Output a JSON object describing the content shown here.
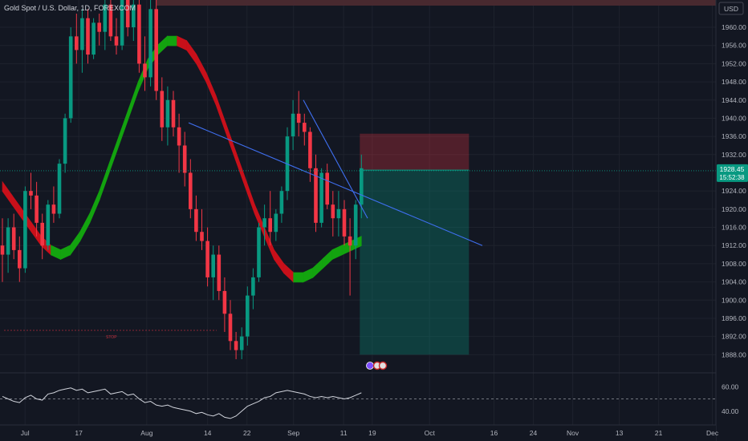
{
  "symbol_title": "Gold Spot / U.S. Dollar, 1D, FOREXCOM",
  "currency_button": "USD",
  "last_price": "1928.45",
  "countdown": "15:52:38",
  "stop_marker": "STOP",
  "colors": {
    "background": "#131722",
    "bull": "#089981",
    "bear": "#f23645",
    "trend_line": "#3f6ff0",
    "price_badge": "#089981",
    "band_up": "#13a30f",
    "band_down": "#c8101a"
  },
  "price_axis": {
    "labels": [
      "1960.00",
      "1956.00",
      "1952.00",
      "1948.00",
      "1944.00",
      "1940.00",
      "1936.00",
      "1932.00",
      "1924.00",
      "1920.00",
      "1916.00",
      "1912.00",
      "1908.00",
      "1904.00",
      "1900.00",
      "1896.00",
      "1892.00",
      "1888.00"
    ]
  },
  "oscillator_axis": {
    "labels": [
      "60.00",
      "40.00"
    ]
  },
  "time_axis": {
    "labels": [
      "Jul",
      "17",
      "Aug",
      "14",
      "22",
      "Sep",
      "11",
      "19",
      "Oct",
      "16",
      "24",
      "Nov",
      "13",
      "21",
      "Dec"
    ]
  },
  "chart_data": {
    "type": "candlestick",
    "title": "Gold Spot / U.S. Dollar, 1D, FOREXCOM",
    "ylabel": "USD",
    "ylim": [
      1884,
      1966
    ],
    "oscillator_ylim": [
      30,
      70
    ],
    "oscillator_levels": [
      60,
      40
    ],
    "last_price": 1928.45,
    "position": {
      "side": "short",
      "entry": 1928.6,
      "stop": 1936.6,
      "target": 1888.0
    },
    "candles": [
      [
        1912,
        1918,
        1904,
        1910
      ],
      [
        1910,
        1918,
        1906,
        1916
      ],
      [
        1916,
        1919,
        1909,
        1911
      ],
      [
        1911,
        1914,
        1904,
        1907
      ],
      [
        1907,
        1925,
        1906,
        1924
      ],
      [
        1924,
        1928,
        1920,
        1923
      ],
      [
        1923,
        1926,
        1914,
        1917
      ],
      [
        1917,
        1919,
        1909,
        1912
      ],
      [
        1912,
        1922,
        1911,
        1921
      ],
      [
        1921,
        1925,
        1917,
        1919
      ],
      [
        1919,
        1931,
        1918,
        1930
      ],
      [
        1930,
        1941,
        1928,
        1940
      ],
      [
        1940,
        1960,
        1939,
        1958
      ],
      [
        1958,
        1963,
        1952,
        1955
      ],
      [
        1955,
        1964,
        1950,
        1962
      ],
      [
        1962,
        1964,
        1952,
        1954
      ],
      [
        1954,
        1962,
        1953,
        1961
      ],
      [
        1961,
        1963,
        1956,
        1959
      ],
      [
        1959,
        1966,
        1955,
        1965
      ],
      [
        1965,
        1968,
        1957,
        1958
      ],
      [
        1958,
        1962,
        1954,
        1956
      ],
      [
        1956,
        1968,
        1955,
        1967
      ],
      [
        1967,
        1969,
        1958,
        1960
      ],
      [
        1960,
        1966,
        1957,
        1965
      ],
      [
        1965,
        1968,
        1950,
        1952
      ],
      [
        1952,
        1958,
        1946,
        1949
      ],
      [
        1949,
        1966,
        1947,
        1964
      ],
      [
        1964,
        1967,
        1944,
        1946
      ],
      [
        1946,
        1949,
        1935,
        1938
      ],
      [
        1938,
        1947,
        1934,
        1944
      ],
      [
        1944,
        1946,
        1936,
        1938
      ],
      [
        1938,
        1941,
        1928,
        1934
      ],
      [
        1934,
        1937,
        1925,
        1928
      ],
      [
        1928,
        1931,
        1918,
        1920
      ],
      [
        1920,
        1923,
        1913,
        1915
      ],
      [
        1915,
        1920,
        1911,
        1913
      ],
      [
        1913,
        1916,
        1903,
        1905
      ],
      [
        1905,
        1912,
        1900,
        1910
      ],
      [
        1910,
        1912,
        1900,
        1902
      ],
      [
        1902,
        1905,
        1893,
        1897
      ],
      [
        1897,
        1900,
        1889,
        1891
      ],
      [
        1891,
        1893,
        1887,
        1889
      ],
      [
        1889,
        1894,
        1887,
        1892
      ],
      [
        1892,
        1903,
        1890,
        1901
      ],
      [
        1901,
        1907,
        1898,
        1905
      ],
      [
        1905,
        1917,
        1904,
        1916
      ],
      [
        1916,
        1921,
        1912,
        1918
      ],
      [
        1918,
        1924,
        1912,
        1915
      ],
      [
        1915,
        1920,
        1913,
        1919
      ],
      [
        1919,
        1925,
        1917,
        1924
      ],
      [
        1924,
        1938,
        1922,
        1936
      ],
      [
        1936,
        1944,
        1933,
        1941
      ],
      [
        1941,
        1946,
        1936,
        1939
      ],
      [
        1939,
        1941,
        1934,
        1937
      ],
      [
        1937,
        1938,
        1926,
        1929
      ],
      [
        1929,
        1932,
        1915,
        1917
      ],
      [
        1917,
        1929,
        1916,
        1928
      ],
      [
        1928,
        1930,
        1920,
        1921
      ],
      [
        1921,
        1924,
        1914,
        1918
      ],
      [
        1918,
        1924,
        1914,
        1920
      ],
      [
        1920,
        1922,
        1912,
        1914
      ],
      [
        1914,
        1918,
        1901,
        1912
      ],
      [
        1912,
        1922,
        1909,
        1921
      ],
      [
        1921,
        1932,
        1918,
        1929
      ]
    ],
    "band": [
      1925,
      1922,
      1919,
      1916,
      1913,
      1911,
      1910,
      1911,
      1914,
      1918,
      1923,
      1929,
      1935,
      1941,
      1947,
      1952,
      1955,
      1957,
      1957,
      1956,
      1953,
      1949,
      1944,
      1938,
      1932,
      1926,
      1920,
      1915,
      1910,
      1907,
      1905,
      1905,
      1906,
      1908,
      1910,
      1911,
      1912,
      1913
    ],
    "band_direction": [
      "down",
      "down",
      "down",
      "down",
      "down",
      "up",
      "up",
      "up",
      "up",
      "up",
      "up",
      "up",
      "up",
      "up",
      "up",
      "up",
      "up",
      "up",
      "down",
      "down",
      "down",
      "down",
      "down",
      "down",
      "down",
      "down",
      "down",
      "down",
      "down",
      "down",
      "up",
      "up",
      "up",
      "up",
      "up",
      "up",
      "up",
      "up"
    ],
    "trend_lines": [
      {
        "from": [
          1939,
          1966
        ],
        "to": [
          1912,
          1910
        ]
      },
      {
        "from": [
          1944,
          1945
        ],
        "to": [
          1918,
          1918
        ]
      }
    ],
    "oscillator": [
      52,
      50,
      48,
      47,
      51,
      53,
      50,
      49,
      54,
      55,
      57,
      58,
      59,
      57,
      58,
      55,
      56,
      57,
      58,
      54,
      55,
      56,
      53,
      54,
      50,
      47,
      48,
      45,
      44,
      45,
      43,
      42,
      41,
      40,
      38,
      39,
      37,
      36,
      38,
      35,
      34,
      36,
      40,
      44,
      46,
      48,
      51,
      52,
      55,
      56,
      57,
      56,
      55,
      54,
      52,
      51,
      52,
      51,
      52,
      51,
      50,
      51,
      53,
      55
    ]
  }
}
